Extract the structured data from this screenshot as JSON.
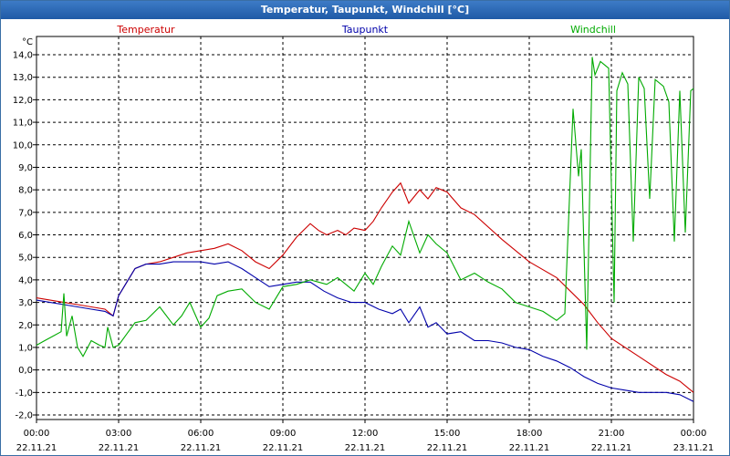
{
  "chart_data": {
    "type": "line",
    "title": "Temperatur, Taupunkt, Windchill [°C]",
    "ylabel": "°C",
    "ylim": [
      -2,
      14.5
    ],
    "yticks": [
      "-2,0",
      "-1,0",
      "0,0",
      "1,0",
      "2,0",
      "3,0",
      "4,0",
      "5,0",
      "6,0",
      "7,0",
      "8,0",
      "9,0",
      "10,0",
      "11,0",
      "12,0",
      "13,0",
      "14,0"
    ],
    "xlim": [
      0,
      24
    ],
    "xticks": [
      {
        "time": "00:00",
        "date": "22.11.21"
      },
      {
        "time": "03:00",
        "date": "22.11.21"
      },
      {
        "time": "06:00",
        "date": "22.11.21"
      },
      {
        "time": "09:00",
        "date": "22.11.21"
      },
      {
        "time": "12:00",
        "date": "22.11.21"
      },
      {
        "time": "15:00",
        "date": "22.11.21"
      },
      {
        "time": "18:00",
        "date": "22.11.21"
      },
      {
        "time": "21:00",
        "date": "22.11.21"
      },
      {
        "time": "00:00",
        "date": "23.11.21"
      }
    ],
    "grid": true,
    "series": [
      {
        "name": "Temperatur",
        "color": "#cc0000",
        "x": [
          0,
          0.5,
          1,
          1.5,
          2,
          2.5,
          2.8,
          3,
          3.3,
          3.6,
          4,
          4.5,
          5,
          5.5,
          6,
          6.5,
          7,
          7.5,
          8,
          8.5,
          9,
          9.5,
          10,
          10.3,
          10.6,
          11,
          11.3,
          11.6,
          12,
          12.3,
          12.6,
          13,
          13.3,
          13.6,
          14,
          14.3,
          14.6,
          15,
          15.5,
          16,
          17,
          18,
          19,
          19.5,
          20,
          20.5,
          21,
          22,
          23,
          23.5,
          24
        ],
        "values": [
          3.2,
          3.1,
          3.0,
          2.9,
          2.8,
          2.7,
          2.4,
          3.3,
          3.9,
          4.5,
          4.7,
          4.8,
          5.0,
          5.2,
          5.3,
          5.4,
          5.6,
          5.3,
          4.8,
          4.5,
          5.1,
          5.9,
          6.5,
          6.2,
          6.0,
          6.2,
          6.0,
          6.3,
          6.2,
          6.6,
          7.2,
          7.9,
          8.3,
          7.4,
          8.0,
          7.6,
          8.1,
          7.9,
          7.2,
          6.9,
          5.8,
          4.8,
          4.1,
          3.5,
          2.9,
          2.1,
          1.4,
          0.6,
          -0.2,
          -0.5,
          -1.0
        ]
      },
      {
        "name": "Taupunkt",
        "color": "#0000aa",
        "x": [
          0,
          0.5,
          1,
          1.5,
          2,
          2.5,
          2.8,
          3,
          3.3,
          3.6,
          4,
          4.5,
          5,
          6,
          6.5,
          7,
          7.5,
          8,
          8.5,
          9,
          9.5,
          10,
          10.5,
          11,
          11.5,
          12,
          12.5,
          13,
          13.3,
          13.6,
          14,
          14.3,
          14.6,
          15,
          15.5,
          16,
          16.5,
          17,
          17.5,
          18,
          18.5,
          19,
          19.5,
          20,
          20.5,
          21,
          21.5,
          22,
          22.5,
          23,
          23.5,
          24
        ],
        "values": [
          3.1,
          3.0,
          2.9,
          2.8,
          2.7,
          2.6,
          2.4,
          3.3,
          3.9,
          4.5,
          4.7,
          4.7,
          4.8,
          4.8,
          4.7,
          4.8,
          4.5,
          4.1,
          3.7,
          3.8,
          3.9,
          3.9,
          3.5,
          3.2,
          3.0,
          3.0,
          2.7,
          2.5,
          2.7,
          2.1,
          2.8,
          1.9,
          2.1,
          1.6,
          1.7,
          1.3,
          1.3,
          1.2,
          1.0,
          0.9,
          0.6,
          0.4,
          0.1,
          -0.3,
          -0.6,
          -0.8,
          -0.9,
          -1.0,
          -1.0,
          -1.0,
          -1.1,
          -1.4
        ]
      },
      {
        "name": "Windchill",
        "color": "#00aa00",
        "x": [
          0,
          0.3,
          0.6,
          0.9,
          1.0,
          1.1,
          1.3,
          1.5,
          1.7,
          2.0,
          2.3,
          2.5,
          2.6,
          2.8,
          3.0,
          3.3,
          3.6,
          4.0,
          4.5,
          5.0,
          5.3,
          5.6,
          6.0,
          6.3,
          6.6,
          7.0,
          7.5,
          8.0,
          8.5,
          9.0,
          9.5,
          10.0,
          10.3,
          10.6,
          11.0,
          11.3,
          11.6,
          12.0,
          12.3,
          12.6,
          13.0,
          13.3,
          13.6,
          14.0,
          14.3,
          14.6,
          15.0,
          15.5,
          16.0,
          16.5,
          17.0,
          17.5,
          18.0,
          18.5,
          19.0,
          19.3,
          19.6,
          19.8,
          19.9,
          20.1,
          20.3,
          20.4,
          20.6,
          20.9,
          21.1,
          21.2,
          21.4,
          21.6,
          21.8,
          22.0,
          22.2,
          22.4,
          22.6,
          22.9,
          23.1,
          23.3,
          23.5,
          23.7,
          23.9,
          24.0
        ],
        "values": [
          1.1,
          1.3,
          1.5,
          1.7,
          3.4,
          1.5,
          2.4,
          1.0,
          0.6,
          1.3,
          1.1,
          1.0,
          1.9,
          1.0,
          1.1,
          1.6,
          2.1,
          2.2,
          2.8,
          2.0,
          2.4,
          3.0,
          1.9,
          2.3,
          3.3,
          3.5,
          3.6,
          3.0,
          2.7,
          3.7,
          3.8,
          4.0,
          3.9,
          3.8,
          4.1,
          3.8,
          3.5,
          4.3,
          3.8,
          4.6,
          5.5,
          5.1,
          6.6,
          5.2,
          6.0,
          5.6,
          5.2,
          4.0,
          4.3,
          3.9,
          3.6,
          3.0,
          2.8,
          2.6,
          2.2,
          2.5,
          11.6,
          8.6,
          9.8,
          0.9,
          13.9,
          13.1,
          13.7,
          13.4,
          3.0,
          12.4,
          13.2,
          12.7,
          5.7,
          13.0,
          12.5,
          7.6,
          12.9,
          12.6,
          11.9,
          5.7,
          12.4,
          6.1,
          12.4,
          12.5
        ]
      }
    ]
  }
}
